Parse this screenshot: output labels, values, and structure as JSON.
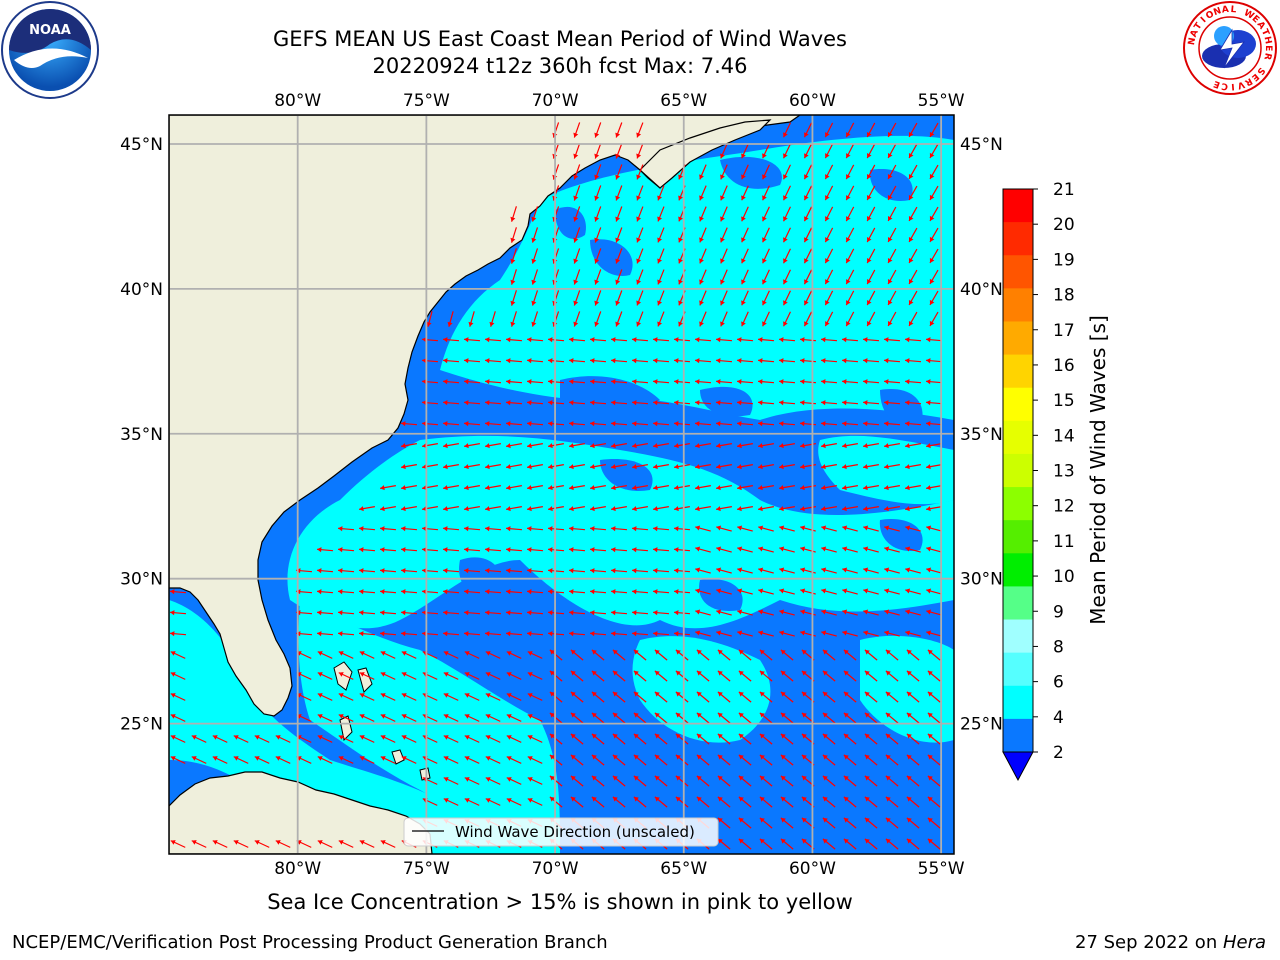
{
  "header": {
    "title_line1": "GEFS MEAN US East Coast Mean Period of Wind Waves",
    "title_line2": "20220924 t12z 360h fcst   Max: 7.46"
  },
  "logos": {
    "left": "noaa-logo",
    "right": "nws-logo",
    "noaa_text": "NOAA",
    "nws_ring_text": "NATIONAL WEATHER SERVICE"
  },
  "map": {
    "lon_labels": [
      "80°W",
      "75°W",
      "70°W",
      "65°W",
      "60°W",
      "55°W"
    ],
    "lat_labels": [
      "45°N",
      "40°N",
      "35°N",
      "30°N",
      "25°N"
    ],
    "lon_range": [
      -85,
      -54.5
    ],
    "lat_range": [
      20.5,
      46
    ],
    "colors": {
      "land": "#efefdc",
      "band_2_4": "#0a78ff",
      "band_4_6": "#00ffff",
      "arrow": "#ff0000",
      "grid": "#b0b0b0"
    },
    "legend_label": "Wind Wave Direction (unscaled)"
  },
  "colorbar": {
    "title": "Mean Period of Wind Waves [s]",
    "ticks": [
      "21",
      "20",
      "19",
      "18",
      "17",
      "16",
      "15",
      "14",
      "13",
      "12",
      "11",
      "10",
      "9",
      "8",
      "6",
      "4",
      "2"
    ],
    "colors": [
      "#ff0000",
      "#ff2a00",
      "#ff5500",
      "#ff8000",
      "#ffaa00",
      "#ffd400",
      "#ffff00",
      "#e6ff00",
      "#ccff00",
      "#8cff00",
      "#55ee00",
      "#00ee00",
      "#55ff88",
      "#a0ffff",
      "#55ffff",
      "#00ffff",
      "#0a78ff"
    ],
    "under_color": "#0000ff"
  },
  "notes": {
    "sea_ice": "Sea Ice Concentration > 15% is shown in pink to yellow",
    "footer_left": "NCEP/EMC/Verification Post Processing Product Generation Branch",
    "footer_date": "27 Sep 2022 on ",
    "footer_host": "Hera"
  }
}
